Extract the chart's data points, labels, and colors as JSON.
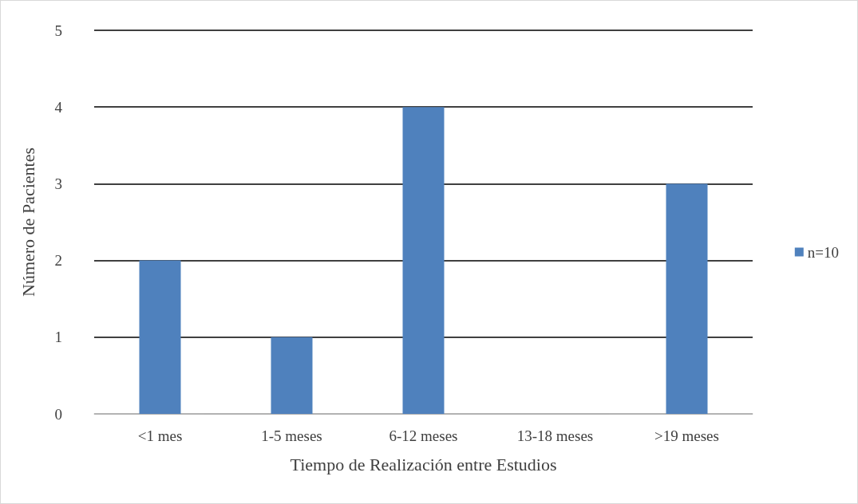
{
  "chart_data": {
    "type": "bar",
    "xlabel": "Tiempo de Realización entre Estudios",
    "ylabel": "Número de Pacientes",
    "categories": [
      "<1 mes",
      "1-5 meses",
      "6-12 meses",
      "13-18 meses",
      ">19 meses"
    ],
    "series": [
      {
        "name": "n=10",
        "color": "#4f81bd",
        "values": [
          2,
          1,
          4,
          0,
          3
        ]
      }
    ],
    "ylim": [
      0,
      5
    ],
    "yticks": [
      0,
      1,
      2,
      3,
      4,
      5
    ],
    "grid": "y",
    "legend": "right"
  }
}
